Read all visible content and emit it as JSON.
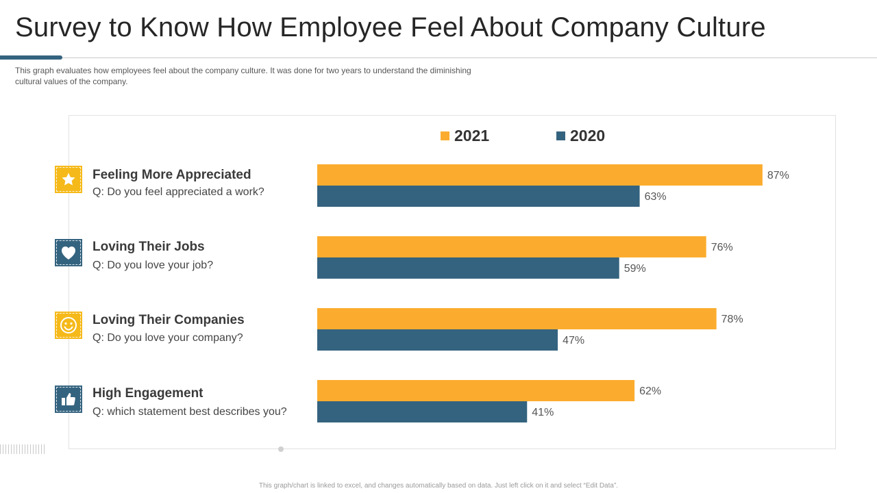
{
  "page": {
    "title": "Survey to Know How Employee Feel About Company Culture",
    "subtitle": "This graph evaluates  how employees feel about the company culture. It was done for two years to understand  the diminishing\n cultural values  of the company.",
    "footer": "This graph/chart is linked to excel, and changes automatically based on data. Just left click on it and select “Edit Data”."
  },
  "colors": {
    "series_2021": "#fbac2e",
    "series_2020": "#34637f",
    "icon_yellow": "#f5b91a",
    "icon_blue": "#34637f",
    "accent": "#34637f"
  },
  "items": [
    {
      "title": "Feeling More Appreciated",
      "question": "Q: Do you feel appreciated a work?",
      "icon": "star-icon",
      "icon_color": "#f5b91a"
    },
    {
      "title": "Loving Their Jobs",
      "question": "Q: Do you love your job?",
      "icon": "heart-icon",
      "icon_color": "#34637f"
    },
    {
      "title": "Loving Their Companies",
      "question": "Q: Do you love your company?",
      "icon": "smiley-icon",
      "icon_color": "#f5b91a"
    },
    {
      "title": "High Engagement",
      "question": "Q: which statement best describes you?",
      "icon": "thumbs-up-icon",
      "icon_color": "#34637f"
    }
  ],
  "chart_data": {
    "type": "bar",
    "orientation": "horizontal",
    "categories": [
      "Feeling More Appreciated",
      "Loving Their Jobs",
      "Loving Their Companies",
      "High Engagement"
    ],
    "series": [
      {
        "name": "2021",
        "values": [
          87,
          76,
          78,
          62
        ],
        "labels": [
          "87%",
          "76%",
          "78%",
          "62%"
        ],
        "color": "#fbac2e"
      },
      {
        "name": "2020",
        "values": [
          63,
          59,
          47,
          41
        ],
        "labels": [
          "63%",
          "59%",
          "47%",
          "41%"
        ],
        "color": "#34637f"
      }
    ],
    "unit": "%",
    "xlim": [
      0,
      100
    ],
    "grid": false,
    "legend_position": "top"
  }
}
